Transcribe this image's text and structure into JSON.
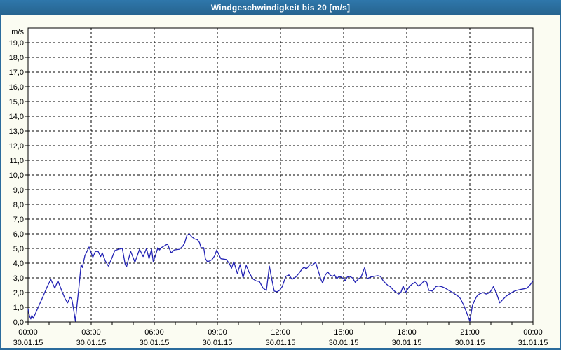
{
  "window": {
    "title": "Windgeschwindigkeit bis 20 [m/s]"
  },
  "colors": {
    "titlebar": "#2a6b9c",
    "titlebar_border": "#17466a",
    "frame": "#2a6b9c",
    "background": "#fbfcf2",
    "plot_bg": "#ffffff",
    "grid": "#000000",
    "text": "#000000",
    "line": "#2323b4"
  },
  "chart_data": {
    "type": "line",
    "title": "Windgeschwindigkeit bis 20 [m/s]",
    "grid": "dashed",
    "legend_position": "none",
    "y_axis": {
      "unit": "m/s",
      "min": 0,
      "max": 20,
      "tick_step": 1,
      "ticks": [
        {
          "value": 19,
          "label": "19,0"
        },
        {
          "value": 18,
          "label": "18,0"
        },
        {
          "value": 17,
          "label": "17,0"
        },
        {
          "value": 16,
          "label": "16,0"
        },
        {
          "value": 15,
          "label": "15,0"
        },
        {
          "value": 14,
          "label": "14,0"
        },
        {
          "value": 13,
          "label": "13,0"
        },
        {
          "value": 12,
          "label": "12,0"
        },
        {
          "value": 11,
          "label": "11,0"
        },
        {
          "value": 10,
          "label": "10,0"
        },
        {
          "value": 9,
          "label": "9,0"
        },
        {
          "value": 8,
          "label": "8,0"
        },
        {
          "value": 7,
          "label": "7,0"
        },
        {
          "value": 6,
          "label": "6,0"
        },
        {
          "value": 5,
          "label": "5,0"
        },
        {
          "value": 4,
          "label": "4,0"
        },
        {
          "value": 3,
          "label": "3,0"
        },
        {
          "value": 2,
          "label": "2,0"
        },
        {
          "value": 1,
          "label": "1,0"
        },
        {
          "value": 0,
          "label": "0,0"
        }
      ]
    },
    "x_axis": {
      "span_hours": 24,
      "major_step_hours": 3,
      "minor_step_hours": 1,
      "ticks": [
        {
          "hour": 0,
          "time": "00:00",
          "date": "30.01.15"
        },
        {
          "hour": 3,
          "time": "03:00",
          "date": "30.01.15"
        },
        {
          "hour": 6,
          "time": "06:00",
          "date": "30.01.15"
        },
        {
          "hour": 9,
          "time": "09:00",
          "date": "30.01.15"
        },
        {
          "hour": 12,
          "time": "12:00",
          "date": "30.01.15"
        },
        {
          "hour": 15,
          "time": "15:00",
          "date": "30.01.15"
        },
        {
          "hour": 18,
          "time": "18:00",
          "date": "30.01.15"
        },
        {
          "hour": 21,
          "time": "21:00",
          "date": "30.01.15"
        },
        {
          "hour": 24,
          "time": "00:00",
          "date": "31.01.15"
        }
      ]
    },
    "series": [
      {
        "name": "Windgeschwindigkeit",
        "color": "#2323b4",
        "points": [
          [
            0.0,
            0.9
          ],
          [
            0.07,
            0.4
          ],
          [
            0.13,
            0.2
          ],
          [
            0.18,
            0.45
          ],
          [
            0.25,
            0.25
          ],
          [
            0.45,
            0.9
          ],
          [
            0.67,
            1.6
          ],
          [
            0.88,
            2.3
          ],
          [
            1.08,
            2.9
          ],
          [
            1.27,
            2.3
          ],
          [
            1.42,
            2.8
          ],
          [
            1.62,
            2.05
          ],
          [
            1.77,
            1.55
          ],
          [
            1.88,
            1.3
          ],
          [
            2.0,
            1.7
          ],
          [
            2.08,
            1.55
          ],
          [
            2.17,
            0.8
          ],
          [
            2.25,
            0.05
          ],
          [
            2.33,
            1.2
          ],
          [
            2.42,
            2.4
          ],
          [
            2.52,
            3.9
          ],
          [
            2.58,
            3.7
          ],
          [
            2.7,
            4.5
          ],
          [
            2.9,
            5.1
          ],
          [
            3.0,
            4.7
          ],
          [
            3.08,
            4.4
          ],
          [
            3.2,
            4.8
          ],
          [
            3.33,
            4.8
          ],
          [
            3.45,
            4.45
          ],
          [
            3.53,
            4.7
          ],
          [
            3.67,
            4.15
          ],
          [
            3.82,
            3.8
          ],
          [
            4.0,
            4.4
          ],
          [
            4.12,
            4.85
          ],
          [
            4.3,
            4.95
          ],
          [
            4.48,
            5.0
          ],
          [
            4.62,
            3.9
          ],
          [
            4.68,
            3.75
          ],
          [
            4.78,
            4.3
          ],
          [
            4.88,
            4.8
          ],
          [
            5.08,
            4.05
          ],
          [
            5.3,
            4.95
          ],
          [
            5.47,
            4.45
          ],
          [
            5.63,
            5.0
          ],
          [
            5.75,
            4.3
          ],
          [
            5.87,
            4.95
          ],
          [
            5.95,
            4.1
          ],
          [
            6.05,
            4.5
          ],
          [
            6.17,
            5.05
          ],
          [
            6.25,
            4.9
          ],
          [
            6.33,
            5.05
          ],
          [
            6.63,
            5.3
          ],
          [
            6.8,
            4.7
          ],
          [
            6.95,
            4.9
          ],
          [
            7.2,
            4.95
          ],
          [
            7.35,
            5.15
          ],
          [
            7.45,
            5.4
          ],
          [
            7.55,
            5.9
          ],
          [
            7.67,
            6.0
          ],
          [
            7.78,
            5.8
          ],
          [
            7.92,
            5.65
          ],
          [
            8.05,
            5.6
          ],
          [
            8.15,
            5.4
          ],
          [
            8.22,
            5.05
          ],
          [
            8.35,
            5.05
          ],
          [
            8.43,
            4.3
          ],
          [
            8.52,
            4.1
          ],
          [
            8.63,
            4.15
          ],
          [
            8.75,
            4.25
          ],
          [
            8.87,
            4.5
          ],
          [
            8.97,
            4.9
          ],
          [
            9.08,
            4.55
          ],
          [
            9.17,
            4.3
          ],
          [
            9.42,
            4.25
          ],
          [
            9.58,
            3.95
          ],
          [
            9.67,
            3.65
          ],
          [
            9.78,
            4.1
          ],
          [
            9.95,
            3.3
          ],
          [
            10.08,
            3.9
          ],
          [
            10.22,
            3.0
          ],
          [
            10.37,
            3.85
          ],
          [
            10.5,
            3.4
          ],
          [
            10.67,
            2.95
          ],
          [
            10.83,
            2.8
          ],
          [
            11.0,
            2.75
          ],
          [
            11.17,
            2.3
          ],
          [
            11.33,
            2.15
          ],
          [
            11.47,
            3.8
          ],
          [
            11.58,
            2.95
          ],
          [
            11.7,
            2.1
          ],
          [
            11.83,
            2.05
          ],
          [
            11.95,
            2.15
          ],
          [
            12.08,
            2.4
          ],
          [
            12.25,
            3.1
          ],
          [
            12.4,
            3.2
          ],
          [
            12.55,
            2.9
          ],
          [
            12.72,
            3.05
          ],
          [
            12.87,
            3.3
          ],
          [
            13.0,
            3.55
          ],
          [
            13.12,
            3.75
          ],
          [
            13.22,
            3.6
          ],
          [
            13.4,
            3.9
          ],
          [
            13.5,
            3.85
          ],
          [
            13.67,
            4.05
          ],
          [
            13.92,
            2.9
          ],
          [
            14.0,
            2.65
          ],
          [
            14.13,
            3.2
          ],
          [
            14.25,
            3.4
          ],
          [
            14.35,
            3.2
          ],
          [
            14.47,
            3.1
          ],
          [
            14.57,
            3.2
          ],
          [
            14.68,
            2.95
          ],
          [
            14.78,
            3.1
          ],
          [
            14.88,
            3.05
          ],
          [
            15.0,
            2.95
          ],
          [
            15.07,
            2.8
          ],
          [
            15.17,
            3.05
          ],
          [
            15.28,
            3.1
          ],
          [
            15.42,
            3.0
          ],
          [
            15.55,
            2.7
          ],
          [
            15.72,
            2.95
          ],
          [
            15.83,
            3.05
          ],
          [
            16.0,
            3.7
          ],
          [
            16.12,
            2.95
          ],
          [
            16.28,
            3.05
          ],
          [
            16.45,
            3.1
          ],
          [
            16.62,
            3.15
          ],
          [
            16.75,
            3.1
          ],
          [
            16.88,
            2.8
          ],
          [
            17.05,
            2.55
          ],
          [
            17.22,
            2.4
          ],
          [
            17.38,
            2.15
          ],
          [
            17.5,
            2.0
          ],
          [
            17.62,
            1.9
          ],
          [
            17.72,
            2.0
          ],
          [
            17.83,
            2.45
          ],
          [
            17.95,
            2.0
          ],
          [
            18.12,
            2.4
          ],
          [
            18.28,
            2.6
          ],
          [
            18.4,
            2.7
          ],
          [
            18.55,
            2.45
          ],
          [
            18.67,
            2.55
          ],
          [
            18.83,
            2.8
          ],
          [
            18.95,
            2.7
          ],
          [
            19.05,
            2.15
          ],
          [
            19.22,
            2.1
          ],
          [
            19.38,
            2.4
          ],
          [
            19.5,
            2.45
          ],
          [
            19.67,
            2.4
          ],
          [
            19.83,
            2.3
          ],
          [
            20.0,
            2.15
          ],
          [
            20.12,
            2.05
          ],
          [
            20.28,
            1.9
          ],
          [
            20.45,
            1.75
          ],
          [
            20.55,
            1.6
          ],
          [
            20.72,
            1.1
          ],
          [
            20.83,
            0.7
          ],
          [
            21.0,
            0.05
          ],
          [
            21.12,
            1.1
          ],
          [
            21.22,
            1.45
          ],
          [
            21.33,
            1.75
          ],
          [
            21.45,
            1.9
          ],
          [
            21.62,
            2.0
          ],
          [
            21.78,
            1.9
          ],
          [
            21.95,
            2.0
          ],
          [
            22.12,
            2.4
          ],
          [
            22.28,
            1.9
          ],
          [
            22.42,
            1.3
          ],
          [
            22.55,
            1.5
          ],
          [
            22.72,
            1.75
          ],
          [
            22.88,
            1.9
          ],
          [
            23.05,
            2.05
          ],
          [
            23.22,
            2.15
          ],
          [
            23.38,
            2.2
          ],
          [
            23.55,
            2.25
          ],
          [
            23.72,
            2.3
          ],
          [
            23.88,
            2.55
          ],
          [
            24.0,
            2.8
          ]
        ]
      }
    ]
  }
}
